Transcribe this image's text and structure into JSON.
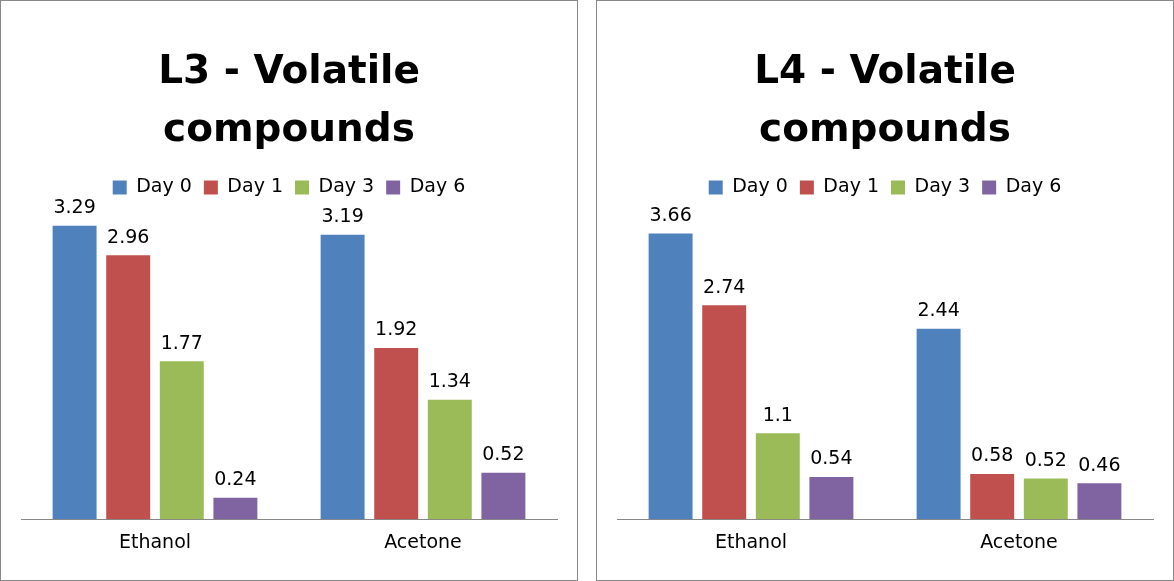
{
  "chart_data": [
    {
      "type": "bar",
      "title": "L3 - Volatile compounds",
      "categories": [
        "Ethanol",
        "Acetone"
      ],
      "legend": "top",
      "data_labels": true,
      "series": [
        {
          "name": "Day 0",
          "color": "#4f81bd",
          "values": [
            3.29,
            3.19
          ]
        },
        {
          "name": "Day 1",
          "color": "#c0504d",
          "values": [
            2.96,
            1.92
          ]
        },
        {
          "name": "Day 3",
          "color": "#9bbb59",
          "values": [
            1.77,
            1.34
          ]
        },
        {
          "name": "Day 6",
          "color": "#8064a2",
          "values": [
            0.24,
            0.52
          ]
        }
      ]
    },
    {
      "type": "bar",
      "title": "L4 - Volatile compounds",
      "categories": [
        "Ethanol",
        "Acetone"
      ],
      "legend": "top",
      "data_labels": true,
      "series": [
        {
          "name": "Day 0",
          "color": "#4f81bd",
          "values": [
            3.66,
            2.44
          ]
        },
        {
          "name": "Day 1",
          "color": "#c0504d",
          "values": [
            2.74,
            0.58
          ]
        },
        {
          "name": "Day 3",
          "color": "#9bbb59",
          "values": [
            1.1,
            0.52
          ]
        },
        {
          "name": "Day 6",
          "color": "#8064a2",
          "values": [
            0.54,
            0.46
          ]
        }
      ]
    }
  ]
}
